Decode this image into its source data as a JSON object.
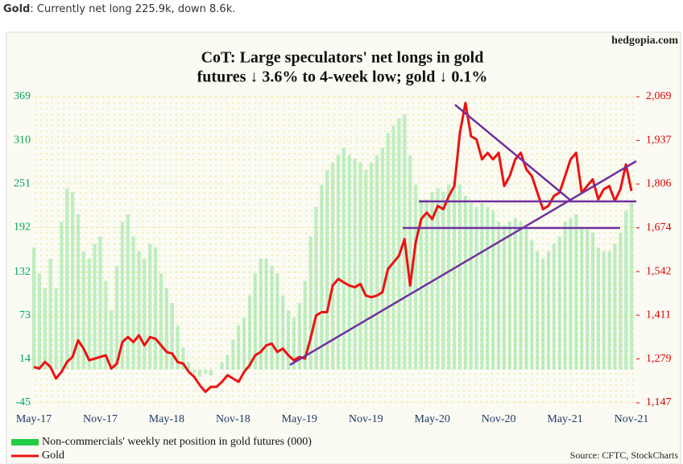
{
  "header": {
    "label": "Gold",
    "text": ": Currently net long 225.9k, down 8.6k."
  },
  "chart_data": {
    "type": "combo",
    "title": [
      "CoT: Large speculators' net longs in gold",
      "futures ↓ 3.6% to 4-week low; gold ↓ 0.1%"
    ],
    "watermark": "hedgopia.com",
    "source": "Source: CFTC, StockCharts",
    "categories": [
      "May-17",
      null,
      null,
      null,
      null,
      null,
      null,
      null,
      null,
      null,
      null,
      null,
      "Nov-17",
      null,
      null,
      null,
      null,
      null,
      null,
      null,
      null,
      null,
      null,
      null,
      "May-18",
      null,
      null,
      null,
      null,
      null,
      null,
      null,
      null,
      null,
      null,
      null,
      "Nov-18",
      null,
      null,
      null,
      null,
      null,
      null,
      null,
      null,
      null,
      null,
      null,
      "May-19",
      null,
      null,
      null,
      null,
      null,
      null,
      null,
      null,
      null,
      null,
      null,
      "Nov-19",
      null,
      null,
      null,
      null,
      null,
      null,
      null,
      null,
      null,
      null,
      null,
      "May-20",
      null,
      null,
      null,
      null,
      null,
      null,
      null,
      null,
      null,
      null,
      null,
      "Nov-20",
      null,
      null,
      null,
      null,
      null,
      null,
      null,
      null,
      null,
      null,
      null,
      "May-21",
      null,
      null,
      null,
      null,
      null,
      null,
      null,
      null,
      null,
      null,
      null,
      "Nov-21"
    ],
    "ylim": [
      -45,
      369
    ],
    "yticks": [
      -45,
      14,
      73,
      132,
      192,
      251,
      310,
      369
    ],
    "y2lim": [
      1147,
      2069
    ],
    "y2ticks": [
      {
        "value": 1147,
        "label": "1,147"
      },
      {
        "value": 1279,
        "label": "1,279"
      },
      {
        "value": 1411,
        "label": "1,411"
      },
      {
        "value": 1542,
        "label": "1,542"
      },
      {
        "value": 1674,
        "label": "1,674"
      },
      {
        "value": 1806,
        "label": "1,806"
      },
      {
        "value": 1937,
        "label": "1,937"
      },
      {
        "value": 2069,
        "label": "2,069"
      }
    ],
    "grid": true,
    "series": [
      {
        "name": "Non-commercials' weekly net position in gold futures (000)",
        "type": "bar",
        "color": "#22cc44",
        "values": [
          165,
          130,
          110,
          150,
          110,
          200,
          245,
          240,
          210,
          160,
          150,
          170,
          180,
          120,
          80,
          140,
          200,
          210,
          180,
          160,
          150,
          170,
          165,
          130,
          110,
          90,
          60,
          30,
          10,
          -5,
          -10,
          -5,
          -8,
          0,
          10,
          20,
          40,
          60,
          70,
          100,
          130,
          150,
          150,
          140,
          130,
          100,
          80,
          70,
          90,
          120,
          180,
          220,
          250,
          270,
          280,
          290,
          300,
          290,
          285,
          280,
          270,
          280,
          290,
          300,
          320,
          330,
          340,
          345,
          290,
          250,
          230,
          230,
          240,
          245,
          240,
          250,
          255,
          250,
          235,
          225,
          220,
          225,
          220,
          215,
          200,
          195,
          200,
          205,
          200,
          190,
          175,
          160,
          150,
          160,
          170,
          180,
          200,
          205,
          210,
          190,
          190,
          185,
          165,
          160,
          160,
          170,
          185,
          215,
          226
        ]
      },
      {
        "name": "Gold",
        "type": "line",
        "axis": "y2",
        "color": "#ee1111",
        "values": [
          1255,
          1250,
          1270,
          1255,
          1220,
          1240,
          1270,
          1285,
          1335,
          1310,
          1275,
          1280,
          1285,
          1290,
          1250,
          1265,
          1330,
          1345,
          1330,
          1350,
          1320,
          1345,
          1340,
          1320,
          1300,
          1295,
          1270,
          1265,
          1240,
          1225,
          1200,
          1180,
          1195,
          1195,
          1210,
          1230,
          1220,
          1210,
          1240,
          1260,
          1290,
          1300,
          1320,
          1325,
          1300,
          1310,
          1290,
          1275,
          1285,
          1280,
          1340,
          1410,
          1420,
          1420,
          1500,
          1520,
          1510,
          1500,
          1495,
          1505,
          1470,
          1465,
          1470,
          1480,
          1550,
          1570,
          1590,
          1640,
          1500,
          1630,
          1700,
          1720,
          1700,
          1740,
          1730,
          1770,
          1800,
          1960,
          2050,
          1950,
          1940,
          1880,
          1900,
          1880,
          1900,
          1800,
          1830,
          1880,
          1900,
          1850,
          1830,
          1780,
          1730,
          1740,
          1770,
          1780,
          1830,
          1880,
          1900,
          1780,
          1800,
          1820,
          1760,
          1790,
          1800,
          1755,
          1790,
          1865,
          1785
        ]
      }
    ]
  }
}
